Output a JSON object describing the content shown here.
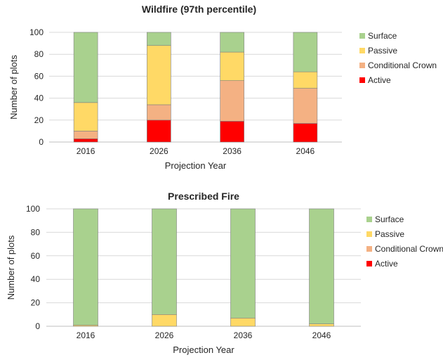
{
  "chart_data": [
    {
      "type": "bar",
      "stacked": true,
      "title": "Wildfire (97th percentile)",
      "xlabel": "Projection Year",
      "ylabel": "Number of plots",
      "categories": [
        "2016",
        "2026",
        "2036",
        "2046"
      ],
      "ylim": [
        0,
        100
      ],
      "yticks": [
        "0",
        "20",
        "40",
        "60",
        "80",
        "100"
      ],
      "grid": true,
      "legend_position": "right",
      "series": [
        {
          "name": "Active",
          "color": "#ff0000",
          "values": [
            3,
            20,
            19,
            17
          ]
        },
        {
          "name": "Conditional Crown",
          "color": "#f4b183",
          "values": [
            7,
            14,
            37,
            32
          ]
        },
        {
          "name": "Passive",
          "color": "#ffd966",
          "values": [
            26,
            54,
            26,
            15
          ]
        },
        {
          "name": "Surface",
          "color": "#a9d18e",
          "values": [
            64,
            12,
            18,
            36
          ]
        }
      ],
      "legend_order": [
        "Surface",
        "Passive",
        "Conditional Crown",
        "Active"
      ]
    },
    {
      "type": "bar",
      "stacked": true,
      "title": "Prescribed Fire",
      "xlabel": "Projection Year",
      "ylabel": "Number of plots",
      "categories": [
        "2016",
        "2026",
        "2036",
        "2046"
      ],
      "ylim": [
        0,
        100
      ],
      "yticks": [
        "0",
        "20",
        "40",
        "60",
        "80",
        "100"
      ],
      "grid": true,
      "legend_position": "right",
      "series": [
        {
          "name": "Active",
          "color": "#ff0000",
          "values": [
            0,
            0,
            0,
            0
          ]
        },
        {
          "name": "Conditional Crown",
          "color": "#f4b183",
          "values": [
            0,
            0,
            0,
            0
          ]
        },
        {
          "name": "Passive",
          "color": "#ffd966",
          "values": [
            1,
            10,
            7,
            2
          ]
        },
        {
          "name": "Surface",
          "color": "#a9d18e",
          "values": [
            99,
            90,
            93,
            98
          ]
        }
      ],
      "legend_order": [
        "Surface",
        "Passive",
        "Conditional Crown",
        "Active"
      ]
    }
  ]
}
